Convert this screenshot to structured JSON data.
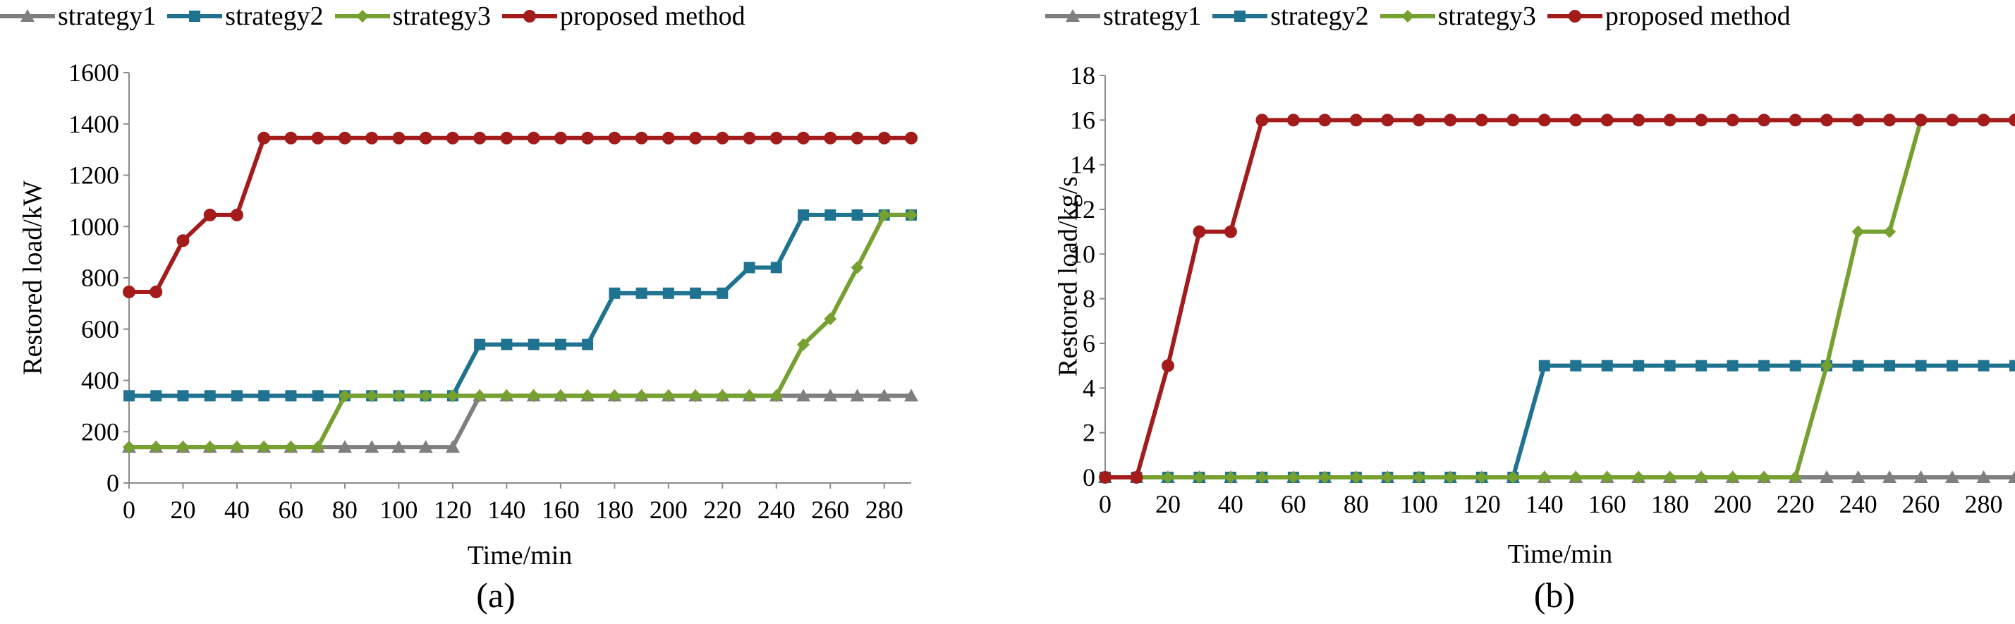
{
  "chart_data": [
    {
      "type": "line",
      "title": "",
      "caption": "(a)",
      "xlabel": "Time/min",
      "ylabel": "Restored load/kW",
      "xlim": [
        0,
        290
      ],
      "ylim": [
        0,
        1600
      ],
      "xticks": [
        0,
        20,
        40,
        60,
        80,
        100,
        120,
        140,
        160,
        180,
        200,
        220,
        240,
        260,
        280
      ],
      "yticks": [
        0,
        200,
        400,
        600,
        800,
        1000,
        1200,
        1400,
        1600
      ],
      "grid": false,
      "legend_position": "top",
      "x": [
        0,
        10,
        20,
        30,
        40,
        50,
        60,
        70,
        80,
        90,
        100,
        110,
        120,
        130,
        140,
        150,
        160,
        170,
        180,
        190,
        200,
        210,
        220,
        230,
        240,
        250,
        260,
        270,
        280,
        290
      ],
      "series": [
        {
          "name": "strategy1",
          "color": "#7f7f7f",
          "marker": "triangle",
          "values": [
            140,
            140,
            140,
            140,
            140,
            140,
            140,
            140,
            140,
            140,
            140,
            140,
            140,
            340,
            340,
            340,
            340,
            340,
            340,
            340,
            340,
            340,
            340,
            340,
            340,
            340,
            340,
            340,
            340,
            340
          ]
        },
        {
          "name": "strategy2",
          "color": "#1f7391",
          "marker": "square",
          "values": [
            340,
            340,
            340,
            340,
            340,
            340,
            340,
            340,
            340,
            340,
            340,
            340,
            340,
            540,
            540,
            540,
            540,
            540,
            740,
            740,
            740,
            740,
            740,
            840,
            840,
            1045,
            1045,
            1045,
            1045,
            1045
          ]
        },
        {
          "name": "strategy3",
          "color": "#76a02f",
          "marker": "diamond",
          "values": [
            140,
            140,
            140,
            140,
            140,
            140,
            140,
            140,
            340,
            340,
            340,
            340,
            340,
            340,
            340,
            340,
            340,
            340,
            340,
            340,
            340,
            340,
            340,
            340,
            340,
            540,
            640,
            840,
            1045,
            1045
          ]
        },
        {
          "name": "proposed method",
          "color": "#a31b1b",
          "marker": "circle",
          "values": [
            745,
            745,
            945,
            1045,
            1045,
            1345,
            1345,
            1345,
            1345,
            1345,
            1345,
            1345,
            1345,
            1345,
            1345,
            1345,
            1345,
            1345,
            1345,
            1345,
            1345,
            1345,
            1345,
            1345,
            1345,
            1345,
            1345,
            1345,
            1345,
            1345
          ]
        }
      ]
    },
    {
      "type": "line",
      "title": "",
      "caption": "(b)",
      "xlabel": "Time/min",
      "ylabel": "Restored load/kg/s",
      "xlim": [
        0,
        290
      ],
      "ylim": [
        0,
        18
      ],
      "xticks": [
        0,
        20,
        40,
        60,
        80,
        100,
        120,
        140,
        160,
        180,
        200,
        220,
        240,
        260,
        280
      ],
      "yticks": [
        0,
        2,
        4,
        6,
        8,
        10,
        12,
        14,
        16,
        18
      ],
      "grid": false,
      "legend_position": "top",
      "x": [
        0,
        10,
        20,
        30,
        40,
        50,
        60,
        70,
        80,
        90,
        100,
        110,
        120,
        130,
        140,
        150,
        160,
        170,
        180,
        190,
        200,
        210,
        220,
        230,
        240,
        250,
        260,
        270,
        280,
        290
      ],
      "series": [
        {
          "name": "strategy1",
          "color": "#7f7f7f",
          "marker": "triangle",
          "values": [
            0,
            0,
            0,
            0,
            0,
            0,
            0,
            0,
            0,
            0,
            0,
            0,
            0,
            0,
            0,
            0,
            0,
            0,
            0,
            0,
            0,
            0,
            0,
            0,
            0,
            0,
            0,
            0,
            0,
            0
          ]
        },
        {
          "name": "strategy2",
          "color": "#1f7391",
          "marker": "square",
          "values": [
            0,
            0,
            0,
            0,
            0,
            0,
            0,
            0,
            0,
            0,
            0,
            0,
            0,
            0,
            5,
            5,
            5,
            5,
            5,
            5,
            5,
            5,
            5,
            5,
            5,
            5,
            5,
            5,
            5,
            5
          ]
        },
        {
          "name": "strategy3",
          "color": "#76a02f",
          "marker": "diamond",
          "values": [
            0,
            0,
            0,
            0,
            0,
            0,
            0,
            0,
            0,
            0,
            0,
            0,
            0,
            0,
            0,
            0,
            0,
            0,
            0,
            0,
            0,
            0,
            0,
            5,
            11,
            11,
            16,
            16,
            16,
            16
          ]
        },
        {
          "name": "proposed method",
          "color": "#a31b1b",
          "marker": "circle",
          "values": [
            0,
            0,
            5,
            11,
            11,
            16,
            16,
            16,
            16,
            16,
            16,
            16,
            16,
            16,
            16,
            16,
            16,
            16,
            16,
            16,
            16,
            16,
            16,
            16,
            16,
            16,
            16,
            16,
            16,
            16
          ]
        }
      ]
    }
  ]
}
